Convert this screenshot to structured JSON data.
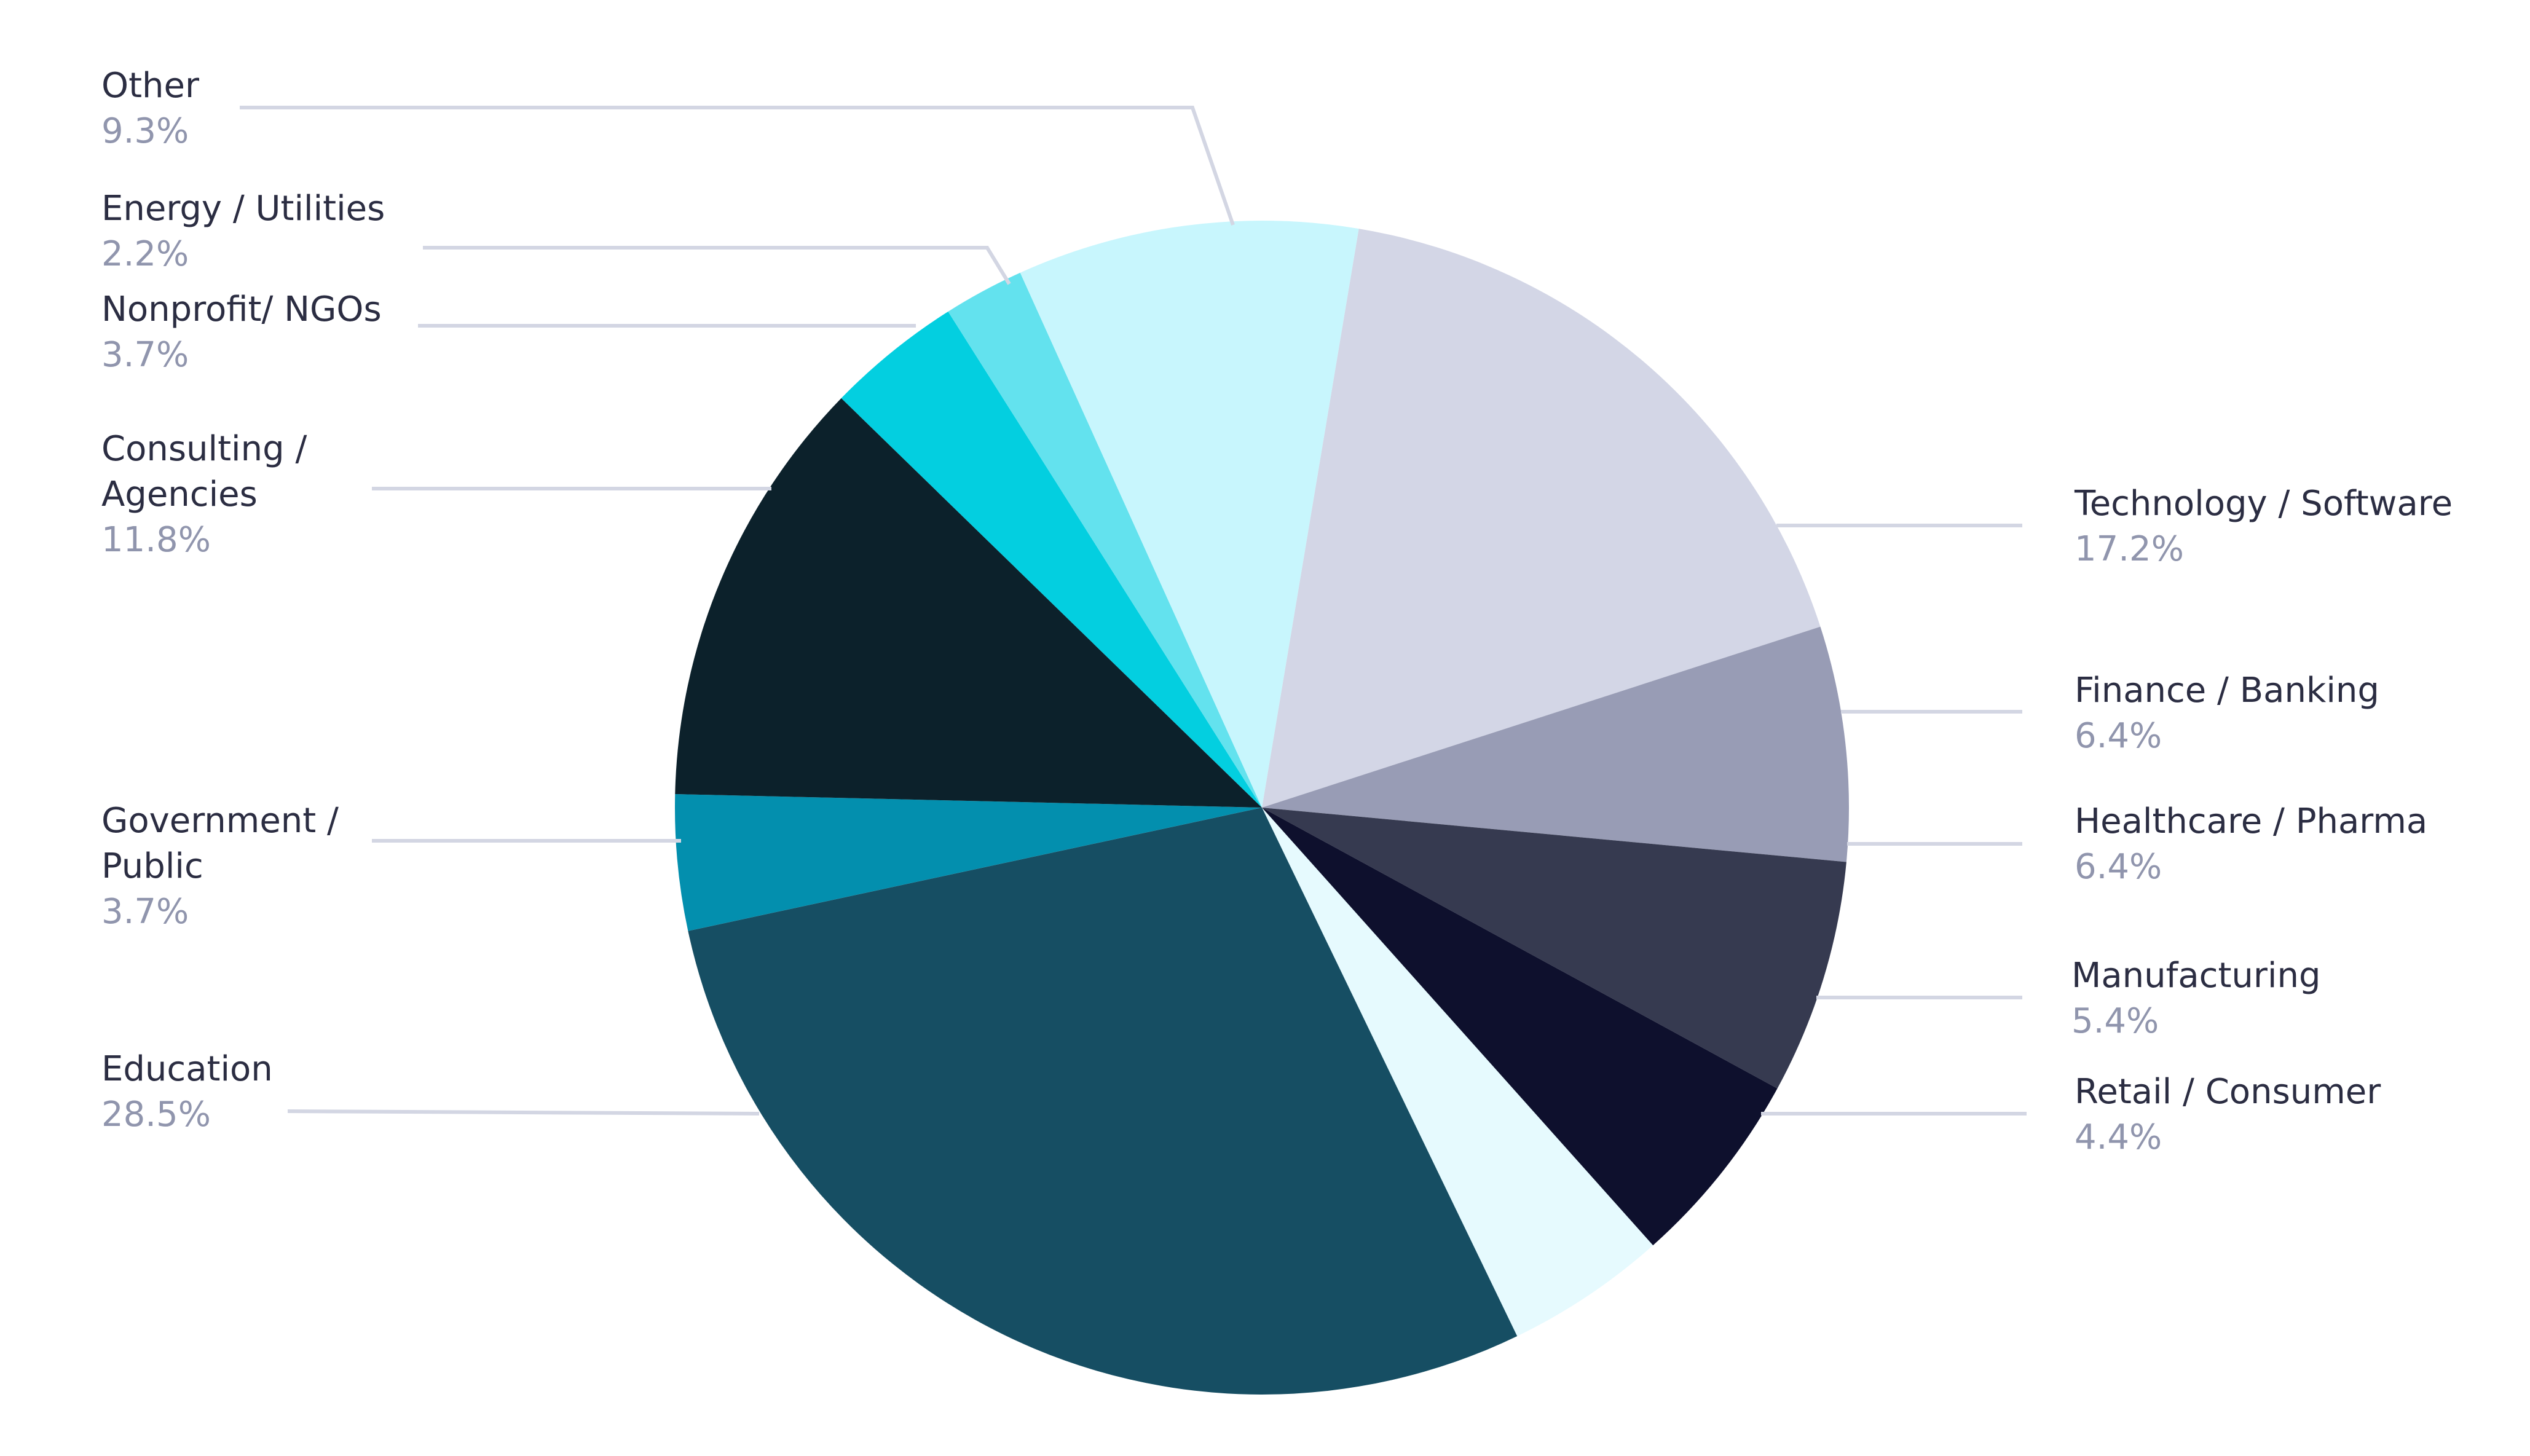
{
  "chart_data": {
    "type": "pie",
    "title": "",
    "series": [
      {
        "name": "Technology / Software",
        "pct_label": "17.2%",
        "value": 17.2,
        "color": "#d3d6e6"
      },
      {
        "name": "Finance / Banking",
        "pct_label": "6.4%",
        "value": 6.4,
        "color": "#989cb5"
      },
      {
        "name": "Healthcare / Pharma",
        "pct_label": "6.4%",
        "value": 6.4,
        "color": "#363a50"
      },
      {
        "name": "Manufacturing",
        "pct_label": "5.4%",
        "value": 5.4,
        "color": "#0e102d"
      },
      {
        "name": "Retail / Consumer",
        "pct_label": "4.4%",
        "value": 4.4,
        "color": "#e6fafe"
      },
      {
        "name": "Education",
        "pct_label": "28.5%",
        "value": 28.5,
        "color": "#164e63"
      },
      {
        "name": "Government / Public",
        "pct_label": "3.7%",
        "value": 3.7,
        "color": "#038fae"
      },
      {
        "name": "Consulting / Agencies",
        "pct_label": "11.8%",
        "value": 11.8,
        "color": "#0c212b"
      },
      {
        "name": "Nonprofit/ NGOs",
        "pct_label": "3.7%",
        "value": 3.7,
        "color": "#03cfe0"
      },
      {
        "name": "Energy / Utilities",
        "pct_label": "2.2%",
        "value": 2.2,
        "color": "#63e2ee"
      },
      {
        "name": "Other",
        "pct_label": "9.3%",
        "value": 9.3,
        "color": "#c8f6fd"
      }
    ]
  }
}
